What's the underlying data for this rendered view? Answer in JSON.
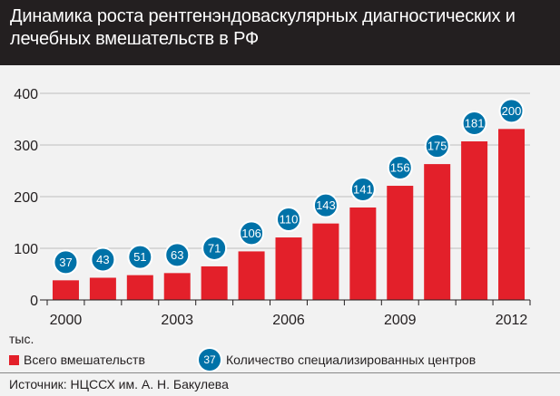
{
  "title": "Динамика роста рентгенэндоваскулярных диагностических и лечебных вмешательств в РФ",
  "unit_label": "тыс.",
  "legend": {
    "bars_label": "Всего вмешательств",
    "circles_label": "Количество специализированных центров",
    "circle_example": "37"
  },
  "source": "Источник: НЦССХ им. А. Н. Бакулева",
  "colors": {
    "header_bg": "#231f20",
    "bar": "#e3202a",
    "circle": "#0072a8",
    "background": "#f2f2f2"
  },
  "chart_data": {
    "type": "bar",
    "title": "Динамика роста рентгенэндоваскулярных диагностических и лечебных вмешательств в РФ",
    "ylabel": "тыс.",
    "ylim": [
      0,
      400
    ],
    "yticks": [
      0,
      100,
      200,
      300,
      400
    ],
    "grid": true,
    "categories": [
      "2000",
      "2001",
      "2002",
      "2003",
      "2004",
      "2005",
      "2006",
      "2007",
      "2008",
      "2009",
      "2010",
      "2011",
      "2012"
    ],
    "xtick_labels": [
      "2000",
      "",
      "",
      "2003",
      "",
      "",
      "2006",
      "",
      "",
      "2009",
      "",
      "",
      "2012"
    ],
    "series": [
      {
        "name": "Всего вмешательств",
        "values": [
          38,
          43,
          48,
          52,
          65,
          94,
          121,
          148,
          179,
          221,
          263,
          307,
          331
        ]
      },
      {
        "name": "Количество специализированных центров",
        "values": [
          37,
          43,
          51,
          63,
          71,
          106,
          110,
          143,
          141,
          156,
          175,
          181,
          200
        ]
      }
    ]
  }
}
